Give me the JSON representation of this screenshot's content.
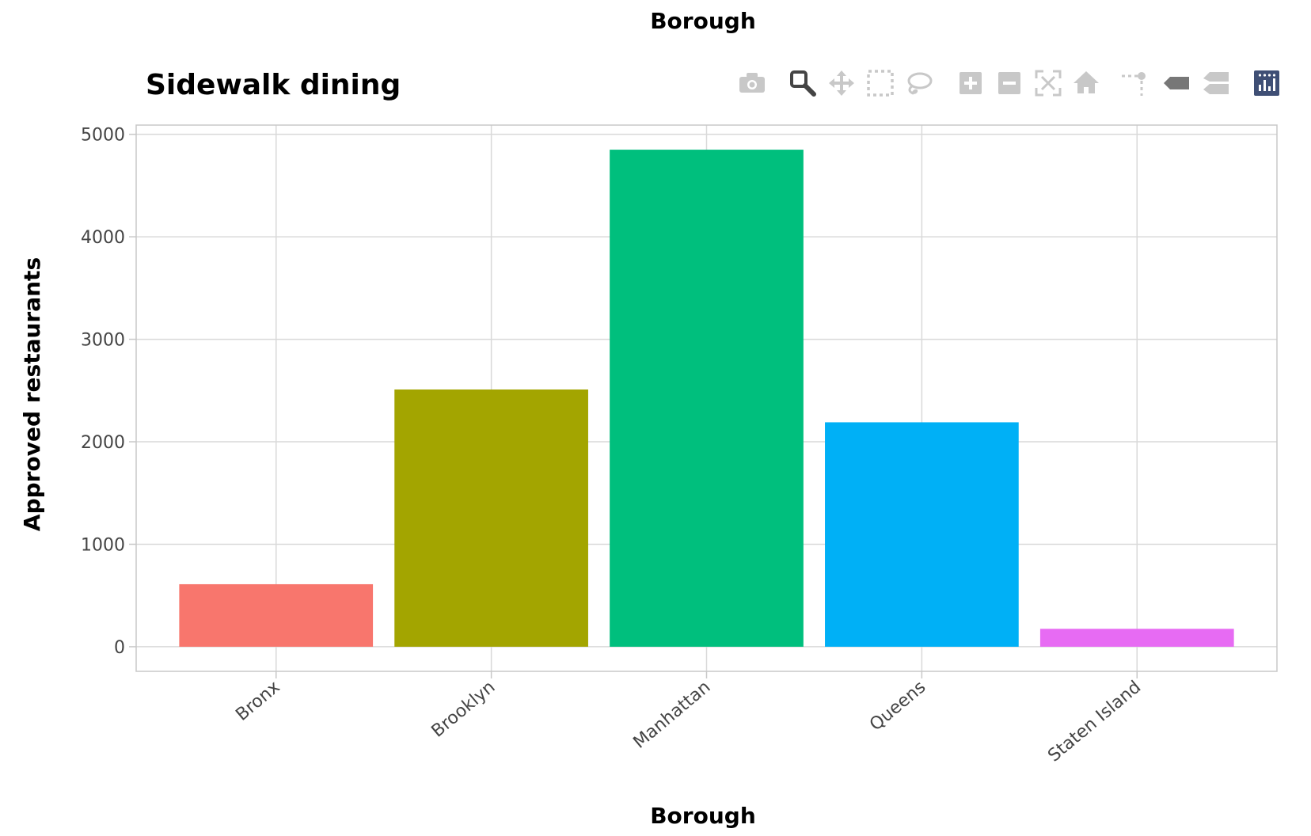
{
  "facet_label": "Borough",
  "colors": {
    "grid": "#d9d9d9",
    "frame": "#c8c8c8",
    "modebar_icon": "#c8c8c8",
    "modebar_active": "#444444",
    "modebar_logo": "#3f4f75"
  },
  "modebar": [
    {
      "name": "camera-icon",
      "title": "Download plot as a png"
    },
    {
      "name": "zoom-icon",
      "title": "Zoom"
    },
    {
      "name": "pan-icon",
      "title": "Pan"
    },
    {
      "name": "box-select-icon",
      "title": "Box Select"
    },
    {
      "name": "lasso-select-icon",
      "title": "Lasso Select"
    },
    {
      "name": "zoom-in-icon",
      "title": "Zoom in"
    },
    {
      "name": "zoom-out-icon",
      "title": "Zoom out"
    },
    {
      "name": "autoscale-icon",
      "title": "Autoscale"
    },
    {
      "name": "reset-axes-icon",
      "title": "Reset axes"
    },
    {
      "name": "spike-lines-icon",
      "title": "Toggle Spike Lines"
    },
    {
      "name": "hover-closest-icon",
      "title": "Show closest data on hover"
    },
    {
      "name": "hover-compare-icon",
      "title": "Compare data on hover"
    },
    {
      "name": "plotly-logo-icon",
      "title": "Produced with Plotly"
    }
  ],
  "chart_data": {
    "type": "bar",
    "title": "Sidewalk dining",
    "xlabel": "Borough",
    "ylabel": "Approved restaurants",
    "categories": [
      "Bronx",
      "Brooklyn",
      "Manhattan",
      "Queens",
      "Staten Island"
    ],
    "values": [
      610,
      2510,
      4850,
      2190,
      175
    ],
    "colors": [
      "#F8766D",
      "#A3A500",
      "#00BF7D",
      "#00B0F6",
      "#E76BF3"
    ],
    "ylim": [
      -240,
      5090
    ],
    "yticks": [
      0,
      1000,
      2000,
      3000,
      4000,
      5000
    ],
    "grid": true
  }
}
